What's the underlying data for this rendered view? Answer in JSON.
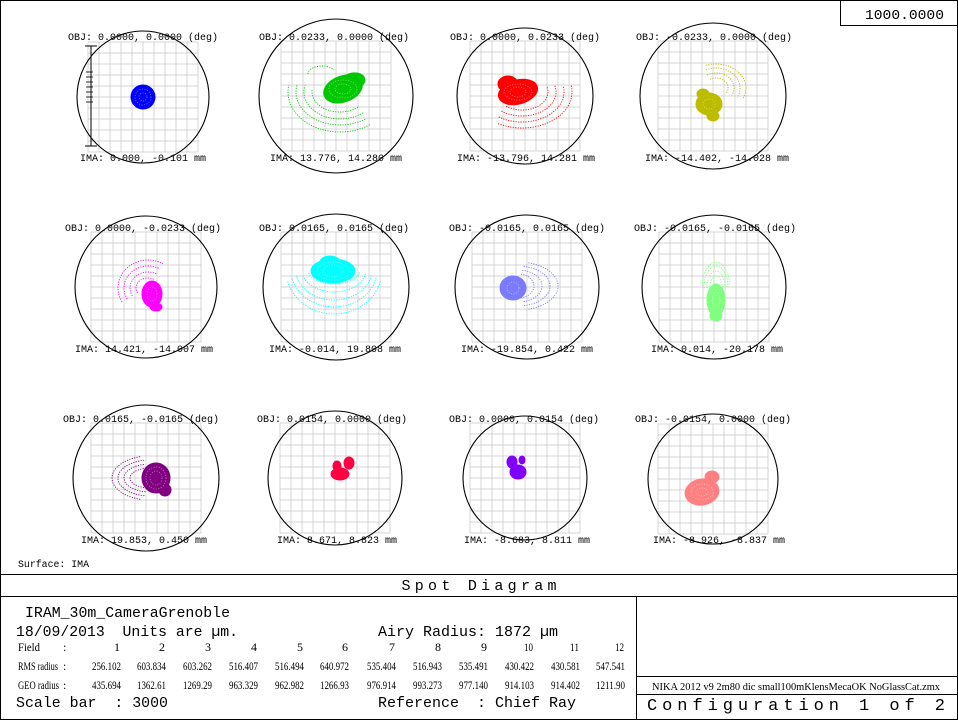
{
  "header": {
    "value_box": "1000.0000"
  },
  "info": {
    "lens_title": "IRAM_30m_CameraGrenoble",
    "date_units": "18/09/2013  Units are µm.",
    "airy_radius": "Airy Radius: 1872 µm",
    "scale_bar": "Scale bar  : 3000",
    "reference": "Reference  : Chief Ray",
    "file_name": "NIKA 2012 v9 2m80 dic small100mKlensMecaOK NoGlassCat.zmx",
    "configuration": "Configuration 1 of 2"
  },
  "chart_data": {
    "type": "scatter",
    "title": "Spot Diagram",
    "surface": "Surface: IMA",
    "panels": [
      {
        "obj": "OBJ: 0.0000, 0.0000 (deg)",
        "ima": "IMA: 0.000, -0.101 mm",
        "color": "#0000ff"
      },
      {
        "obj": "OBJ: 0.0233, 0.0000 (deg)",
        "ima": "IMA: 13.776, 14.280 mm",
        "color": "#00c800"
      },
      {
        "obj": "OBJ: 0.0000, 0.0233 (deg)",
        "ima": "IMA: -13.796, 14.281 mm",
        "color": "#ff0000"
      },
      {
        "obj": "OBJ: -0.0233, 0.0000 (deg)",
        "ima": "IMA: -14.402, -14.028 mm",
        "color": "#bcbc00"
      },
      {
        "obj": "OBJ: 0.0000, -0.0233 (deg)",
        "ima": "IMA: 14.421, -14.007 mm",
        "color": "#ff00ff"
      },
      {
        "obj": "OBJ: 0.0165, 0.0165 (deg)",
        "ima": "IMA: -0.014, 19.808 mm",
        "color": "#00ffff"
      },
      {
        "obj": "OBJ: -0.0165, 0.0165 (deg)",
        "ima": "IMA: -19.854, 0.422 mm",
        "color": "#7b7bff"
      },
      {
        "obj": "OBJ: -0.0165, -0.0165 (deg)",
        "ima": "IMA: 0.014, -20.178 mm",
        "color": "#80ff80"
      },
      {
        "obj": "OBJ: 0.0165, -0.0165 (deg)",
        "ima": "IMA: 19.853, 0.450 mm",
        "color": "#800080"
      },
      {
        "obj": "OBJ: 0.0154, 0.0000 (deg)",
        "ima": "IMA: 8.671, 8.823 mm",
        "color": "#ff0040"
      },
      {
        "obj": "OBJ: 0.0000, 0.0154 (deg)",
        "ima": "IMA: -8.683, 8.811 mm",
        "color": "#8000ff"
      },
      {
        "obj": "OBJ: -0.0154, 0.0000 (deg)",
        "ima": "IMA: -8.926, -8.837 mm",
        "color": "#ff8080"
      }
    ],
    "table": {
      "row_labels": [
        "Field",
        "RMS radius",
        "GEO radius"
      ],
      "separator": ":",
      "fields": [
        "1",
        "2",
        "3",
        "4",
        "5",
        "6",
        "7",
        "8",
        "9",
        "10",
        "11",
        "12"
      ],
      "rms_radius": [
        "256.102",
        "603.834",
        "603.262",
        "516.407",
        "516.494",
        "640.972",
        "535.404",
        "516.943",
        "535.491",
        "430.422",
        "430.581",
        "547.541"
      ],
      "geo_radius": [
        "435.694",
        "1362.61",
        "1269.29",
        "963.329",
        "962.982",
        "1266.93",
        "976.914",
        "993.273",
        "977.140",
        "914.103",
        "914.402",
        "1211.90"
      ]
    }
  }
}
